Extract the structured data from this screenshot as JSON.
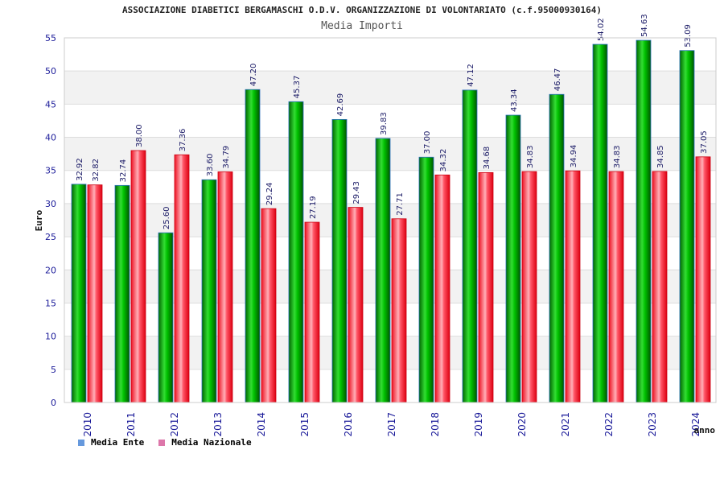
{
  "chart_data": {
    "type": "bar",
    "title": "ASSOCIAZIONE DIABETICI BERGAMASCHI O.D.V. ORGANIZZAZIONE DI VOLONTARIATO (c.f.95000930164)",
    "subtitle": "Media Importi",
    "xlabel": "anno",
    "ylabel": "Euro",
    "ylim": [
      0,
      55
    ],
    "yticks": [
      0,
      5,
      10,
      15,
      20,
      25,
      30,
      35,
      40,
      45,
      50,
      55
    ],
    "grid": true,
    "legend_position": "bottom-left",
    "categories": [
      "2010",
      "2011",
      "2012",
      "2013",
      "2014",
      "2015",
      "2016",
      "2017",
      "2018",
      "2019",
      "2020",
      "2021",
      "2022",
      "2023",
      "2024"
    ],
    "series": [
      {
        "name": "Media Ente",
        "color": "#00b000",
        "legend_color": "#6699dd",
        "values": [
          32.92,
          32.74,
          25.6,
          33.6,
          47.2,
          45.37,
          42.69,
          39.83,
          37.0,
          47.12,
          43.34,
          46.47,
          54.02,
          54.63,
          53.09
        ],
        "labels": [
          "32.92",
          "32.74",
          "25.60",
          "33.60",
          "47.20",
          "45.37",
          "42.69",
          "39.83",
          "37.00",
          "47.12",
          "43.34",
          "46.47",
          "54.02",
          "54.63",
          "53.09"
        ]
      },
      {
        "name": "Media Nazionale",
        "color": "#ee2233",
        "legend_color": "#dd77aa",
        "values": [
          32.82,
          38.0,
          37.36,
          34.79,
          29.24,
          27.19,
          29.43,
          27.71,
          34.32,
          34.68,
          34.83,
          34.94,
          34.83,
          34.85,
          37.05
        ],
        "labels": [
          "32.82",
          "38.00",
          "37.36",
          "34.79",
          "29.24",
          "27.19",
          "29.43",
          "27.71",
          "34.32",
          "34.68",
          "34.83",
          "34.94",
          "34.83",
          "34.85",
          "37.05"
        ]
      }
    ]
  }
}
